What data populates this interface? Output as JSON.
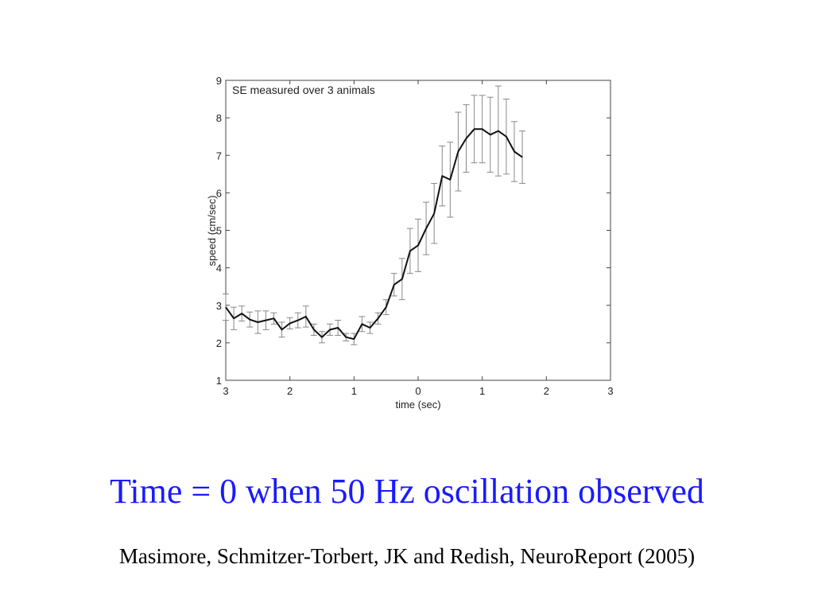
{
  "chart_data": {
    "type": "line",
    "annotation": "SE measured over 3 animals",
    "xlabel": "time (sec)",
    "ylabel": "speed (cm/sec)",
    "xlim": [
      -3,
      3
    ],
    "ylim": [
      1,
      9
    ],
    "x_ticks": [
      -3,
      -2,
      -1,
      0,
      1,
      2,
      3
    ],
    "x_tick_labels": [
      "3",
      "2",
      "1",
      "0",
      "1",
      "2",
      "3"
    ],
    "y_ticks": [
      1,
      2,
      3,
      4,
      5,
      6,
      7,
      8,
      9
    ],
    "y_tick_labels": [
      "1",
      "2",
      "3",
      "4",
      "5",
      "6",
      "7",
      "8",
      "9"
    ],
    "grid": false,
    "series": [
      {
        "x": [
          -3.0,
          -2.875,
          -2.75,
          -2.625,
          -2.5,
          -2.375,
          -2.25,
          -2.125,
          -2.0,
          -1.875,
          -1.75,
          -1.625,
          -1.5,
          -1.375,
          -1.25,
          -1.125,
          -1.0,
          -0.875,
          -0.75,
          -0.625,
          -0.5,
          -0.375,
          -0.25,
          -0.125,
          0.0,
          0.125,
          0.25,
          0.375,
          0.5,
          0.625,
          0.75,
          0.875,
          1.0,
          1.125,
          1.25,
          1.375,
          1.5,
          1.625,
          1.75,
          1.875,
          2.0,
          2.125,
          2.25,
          2.375,
          2.5,
          2.625,
          2.75,
          2.875,
          3.0
        ],
        "y": [
          2.95,
          2.65,
          2.78,
          2.62,
          2.55,
          2.6,
          2.65,
          2.35,
          2.52,
          2.6,
          2.7,
          2.35,
          2.15,
          2.35,
          2.4,
          2.15,
          2.1,
          2.5,
          2.4,
          2.65,
          2.95,
          3.55,
          3.7,
          4.45,
          4.6,
          5.05,
          5.45,
          6.45,
          6.35,
          7.1,
          7.45,
          7.7,
          7.7,
          7.55,
          7.65,
          7.5,
          7.1,
          6.95,
          null,
          null,
          null,
          null,
          null,
          null,
          null,
          null,
          null,
          null,
          null
        ],
        "se": [
          0.35,
          0.3,
          0.2,
          0.2,
          0.3,
          0.25,
          0.15,
          0.2,
          0.15,
          0.2,
          0.28,
          0.15,
          0.15,
          0.15,
          0.2,
          0.1,
          0.15,
          0.2,
          0.15,
          0.15,
          0.2,
          0.3,
          0.55,
          0.6,
          0.7,
          0.7,
          0.8,
          0.8,
          1.0,
          1.05,
          0.9,
          0.9,
          0.9,
          1.0,
          1.2,
          1.0,
          0.8,
          0.7,
          null,
          null,
          null,
          null,
          null,
          null,
          null,
          null,
          null,
          null,
          null
        ]
      }
    ]
  },
  "caption": "Time = 0 when 50 Hz oscillation observed",
  "citation": "Masimore, Schmitzer-Torbert, JK and Redish, NeuroReport (2005)",
  "colors": {
    "caption": "#1a1aff",
    "line": "#111111",
    "errorbar": "#888888"
  }
}
